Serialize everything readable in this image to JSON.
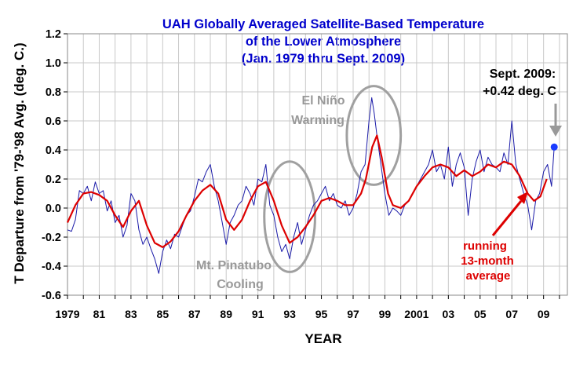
{
  "chart_data": {
    "type": "line",
    "title_lines": [
      "UAH Globally Averaged Satellite-Based Temperature",
      "of the Lower Atmosphere",
      "(Jan. 1979  thru Sept. 2009)"
    ],
    "xlabel": "YEAR",
    "ylabel": "T Departure from '79-'98 Avg. (deg. C.)",
    "xlim": [
      1979.0,
      2010.5
    ],
    "ylim": [
      -0.6,
      1.2
    ],
    "y_ticks": [
      {
        "value": 1.2,
        "label": "1.2"
      },
      {
        "value": 1.0,
        "label": "1.0"
      },
      {
        "value": 0.8,
        "label": "0.8"
      },
      {
        "value": 0.6,
        "label": "0.6"
      },
      {
        "value": 0.4,
        "label": "0.4"
      },
      {
        "value": 0.2,
        "label": "0.2"
      },
      {
        "value": 0.0,
        "label": "0.0"
      },
      {
        "value": -0.2,
        "label": "-0.2"
      },
      {
        "value": -0.4,
        "label": "-0.4"
      },
      {
        "value": -0.6,
        "label": "-0.6"
      }
    ],
    "x_ticks": [
      {
        "value": 1979,
        "label": "1979"
      },
      {
        "value": 1981,
        "label": "81"
      },
      {
        "value": 1983,
        "label": "83"
      },
      {
        "value": 1985,
        "label": "85"
      },
      {
        "value": 1987,
        "label": "87"
      },
      {
        "value": 1989,
        "label": "89"
      },
      {
        "value": 1991,
        "label": "91"
      },
      {
        "value": 1993,
        "label": "93"
      },
      {
        "value": 1995,
        "label": "95"
      },
      {
        "value": 1997,
        "label": "97"
      },
      {
        "value": 1999,
        "label": "99"
      },
      {
        "value": 2001,
        "label": "2001"
      },
      {
        "value": 2003,
        "label": "03"
      },
      {
        "value": 2005,
        "label": "05"
      },
      {
        "value": 2007,
        "label": "07"
      },
      {
        "value": 2009,
        "label": "09"
      }
    ],
    "grid": {
      "horizontal": true,
      "vertical": true
    },
    "colors": {
      "title": "#0000cc",
      "monthly": "#1a1aa8",
      "running": "#dd0000",
      "annotation_grey": "#999999",
      "ellipse": "#a0a0a0",
      "latest_point": "#1a3cff",
      "axis_text": "#000000",
      "grid": "#c8c8c8"
    },
    "series": [
      {
        "key": "monthly",
        "x": [
          1979.0,
          1979.25,
          1979.5,
          1979.75,
          1980.0,
          1980.25,
          1980.5,
          1980.75,
          1981.0,
          1981.25,
          1981.5,
          1981.75,
          1982.0,
          1982.25,
          1982.5,
          1982.75,
          1983.0,
          1983.25,
          1983.5,
          1983.75,
          1984.0,
          1984.25,
          1984.5,
          1984.75,
          1985.0,
          1985.25,
          1985.5,
          1985.75,
          1986.0,
          1986.25,
          1986.5,
          1986.75,
          1987.0,
          1987.25,
          1987.5,
          1987.75,
          1988.0,
          1988.25,
          1988.5,
          1988.75,
          1989.0,
          1989.25,
          1989.5,
          1989.75,
          1990.0,
          1990.25,
          1990.5,
          1990.75,
          1991.0,
          1991.25,
          1991.5,
          1991.75,
          1992.0,
          1992.25,
          1992.5,
          1992.75,
          1993.0,
          1993.25,
          1993.5,
          1993.75,
          1994.0,
          1994.25,
          1994.5,
          1994.75,
          1995.0,
          1995.25,
          1995.5,
          1995.75,
          1996.0,
          1996.25,
          1996.5,
          1996.75,
          1997.0,
          1997.25,
          1997.5,
          1997.75,
          1998.0,
          1998.17,
          1998.33,
          1998.5,
          1998.75,
          1999.0,
          1999.25,
          1999.5,
          1999.75,
          2000.0,
          2000.25,
          2000.5,
          2000.75,
          2001.0,
          2001.25,
          2001.5,
          2001.75,
          2002.0,
          2002.25,
          2002.5,
          2002.75,
          2003.0,
          2003.25,
          2003.5,
          2003.75,
          2004.0,
          2004.25,
          2004.5,
          2004.75,
          2005.0,
          2005.25,
          2005.5,
          2005.75,
          2006.0,
          2006.25,
          2006.5,
          2006.75,
          2007.0,
          2007.25,
          2007.5,
          2007.75,
          2008.0,
          2008.25,
          2008.5,
          2008.75,
          2009.0,
          2009.25,
          2009.5,
          2009.67
        ],
        "values": [
          -0.15,
          -0.16,
          -0.08,
          0.12,
          0.1,
          0.15,
          0.05,
          0.18,
          0.1,
          0.12,
          -0.02,
          0.05,
          -0.1,
          -0.05,
          -0.2,
          -0.12,
          0.1,
          0.05,
          -0.15,
          -0.25,
          -0.2,
          -0.28,
          -0.35,
          -0.45,
          -0.3,
          -0.22,
          -0.28,
          -0.18,
          -0.2,
          -0.12,
          -0.05,
          -0.02,
          0.08,
          0.2,
          0.18,
          0.25,
          0.3,
          0.15,
          0.05,
          -0.1,
          -0.25,
          -0.1,
          -0.05,
          0.02,
          0.05,
          0.15,
          0.1,
          0.02,
          0.2,
          0.18,
          0.3,
          0.02,
          -0.05,
          -0.2,
          -0.3,
          -0.25,
          -0.35,
          -0.2,
          -0.1,
          -0.25,
          -0.15,
          -0.05,
          0.02,
          0.05,
          0.1,
          0.15,
          0.05,
          0.1,
          0.02,
          0.0,
          0.05,
          -0.05,
          0.0,
          0.1,
          0.25,
          0.3,
          0.6,
          0.76,
          0.65,
          0.5,
          0.3,
          0.1,
          -0.05,
          0.0,
          -0.02,
          -0.05,
          0.02,
          0.05,
          0.1,
          0.15,
          0.2,
          0.25,
          0.3,
          0.4,
          0.25,
          0.3,
          0.2,
          0.42,
          0.15,
          0.3,
          0.38,
          0.28,
          -0.05,
          0.2,
          0.32,
          0.4,
          0.25,
          0.35,
          0.3,
          0.28,
          0.25,
          0.38,
          0.3,
          0.6,
          0.3,
          0.2,
          0.1,
          0.02,
          -0.15,
          0.05,
          0.1,
          0.25,
          0.3,
          0.15,
          0.42
        ]
      },
      {
        "key": "running",
        "x": [
          1979.0,
          1979.5,
          1980.0,
          1980.5,
          1981.0,
          1981.5,
          1982.0,
          1982.5,
          1983.0,
          1983.5,
          1984.0,
          1984.5,
          1985.0,
          1985.5,
          1986.0,
          1986.5,
          1987.0,
          1987.5,
          1988.0,
          1988.5,
          1989.0,
          1989.5,
          1990.0,
          1990.5,
          1991.0,
          1991.5,
          1992.0,
          1992.5,
          1993.0,
          1993.5,
          1994.0,
          1994.5,
          1995.0,
          1995.5,
          1996.0,
          1996.5,
          1997.0,
          1997.5,
          1997.8,
          1998.2,
          1998.5,
          1998.8,
          1999.2,
          1999.5,
          2000.0,
          2000.5,
          2001.0,
          2001.5,
          2002.0,
          2002.5,
          2003.0,
          2003.5,
          2004.0,
          2004.5,
          2005.0,
          2005.5,
          2006.0,
          2006.5,
          2007.0,
          2007.5,
          2008.0,
          2008.4,
          2008.8,
          2009.2
        ],
        "values": [
          -0.1,
          0.02,
          0.1,
          0.11,
          0.09,
          0.05,
          -0.05,
          -0.13,
          -0.02,
          0.05,
          -0.12,
          -0.24,
          -0.27,
          -0.23,
          -0.16,
          -0.05,
          0.05,
          0.12,
          0.16,
          0.1,
          -0.08,
          -0.15,
          -0.08,
          0.05,
          0.15,
          0.18,
          0.05,
          -0.12,
          -0.24,
          -0.2,
          -0.13,
          -0.05,
          0.05,
          0.07,
          0.05,
          0.02,
          0.02,
          0.1,
          0.2,
          0.42,
          0.5,
          0.35,
          0.1,
          0.02,
          0.0,
          0.05,
          0.15,
          0.22,
          0.28,
          0.3,
          0.28,
          0.22,
          0.26,
          0.22,
          0.25,
          0.3,
          0.28,
          0.32,
          0.3,
          0.22,
          0.1,
          0.05,
          0.08,
          0.2
        ]
      }
    ],
    "annotations": {
      "el_nino": [
        "El Niño",
        "Warming"
      ],
      "pinatubo": [
        "Mt. Pinatubo",
        "Cooling"
      ],
      "latest": [
        "Sept. 2009:",
        "+0.42 deg. C"
      ],
      "running": [
        "running",
        "13-month",
        "average"
      ]
    },
    "latest_point": {
      "x": 2009.67,
      "y": 0.42
    },
    "ellipses": [
      {
        "cx": 1998.3,
        "cy": 0.5,
        "rx": 1.7,
        "ry": 0.34
      },
      {
        "cx": 1993.0,
        "cy": -0.06,
        "rx": 1.6,
        "ry": 0.38
      }
    ]
  }
}
